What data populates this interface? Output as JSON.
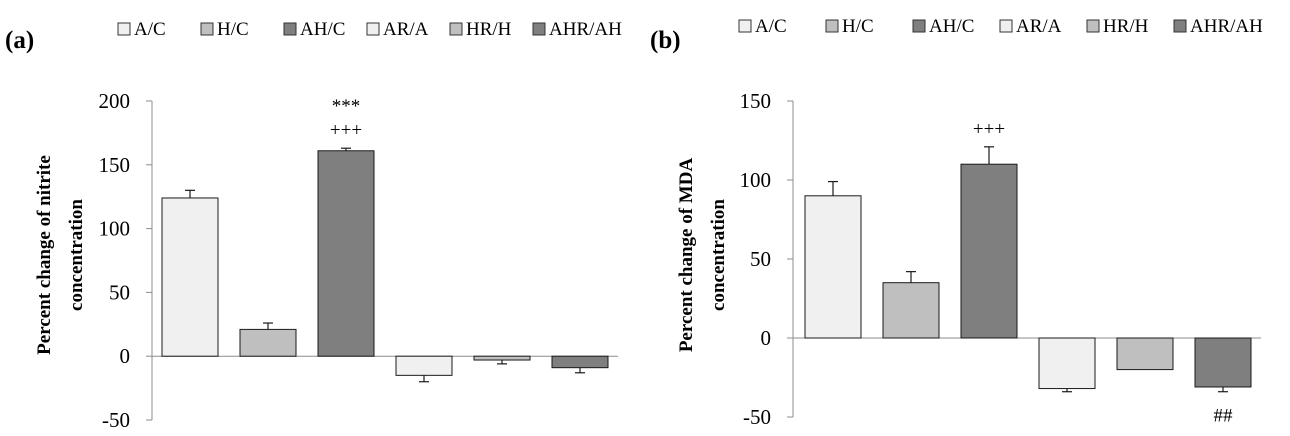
{
  "chart_data": [
    {
      "panel_label": "(a)",
      "type": "bar",
      "categories": [
        "A/C",
        "H/C",
        "AH/C",
        "AR/A",
        "HR/H",
        "AHR/AH"
      ],
      "values": [
        124,
        21,
        161,
        -15,
        -3,
        -9
      ],
      "errors": [
        6,
        5,
        2,
        5,
        3,
        4
      ],
      "colors": [
        "#f0f0f0",
        "#bfbfbf",
        "#7f7f7f",
        "#f0f0f0",
        "#bfbfbf",
        "#7f7f7f"
      ],
      "ylabel_line1": "Percent change of nitrite",
      "ylabel_line2": "concentration",
      "ylim": [
        -50,
        200
      ],
      "yticks": [
        -50,
        0,
        50,
        100,
        150,
        200
      ],
      "annotations": [
        {
          "category": "AH/C",
          "lines": [
            "***",
            "+++"
          ]
        }
      ],
      "legend": [
        "A/C",
        "H/C",
        "AH/C",
        "AR/A",
        "HR/H",
        "AHR/AH"
      ],
      "legend_position": "top"
    },
    {
      "panel_label": "(b)",
      "type": "bar",
      "categories": [
        "A/C",
        "H/C",
        "AH/C",
        "AR/A",
        "HR/H",
        "AHR/AH"
      ],
      "values": [
        90,
        35,
        110,
        -32,
        -20,
        -31
      ],
      "errors": [
        9,
        7,
        11,
        2,
        0,
        3
      ],
      "colors": [
        "#f0f0f0",
        "#bfbfbf",
        "#7f7f7f",
        "#f0f0f0",
        "#bfbfbf",
        "#7f7f7f"
      ],
      "ylabel_line1": "Percent change of MDA",
      "ylabel_line2": "concentration",
      "ylim": [
        -50,
        150
      ],
      "yticks": [
        -50,
        0,
        50,
        100,
        150
      ],
      "annotations": [
        {
          "category": "AH/C",
          "lines": [
            "+++"
          ]
        },
        {
          "category": "AHR/AH",
          "lines": [
            "##"
          ],
          "below": true
        }
      ],
      "legend": [
        "A/C",
        "H/C",
        "AH/C",
        "AR/A",
        "HR/H",
        "AHR/AH"
      ],
      "legend_position": "top"
    }
  ]
}
